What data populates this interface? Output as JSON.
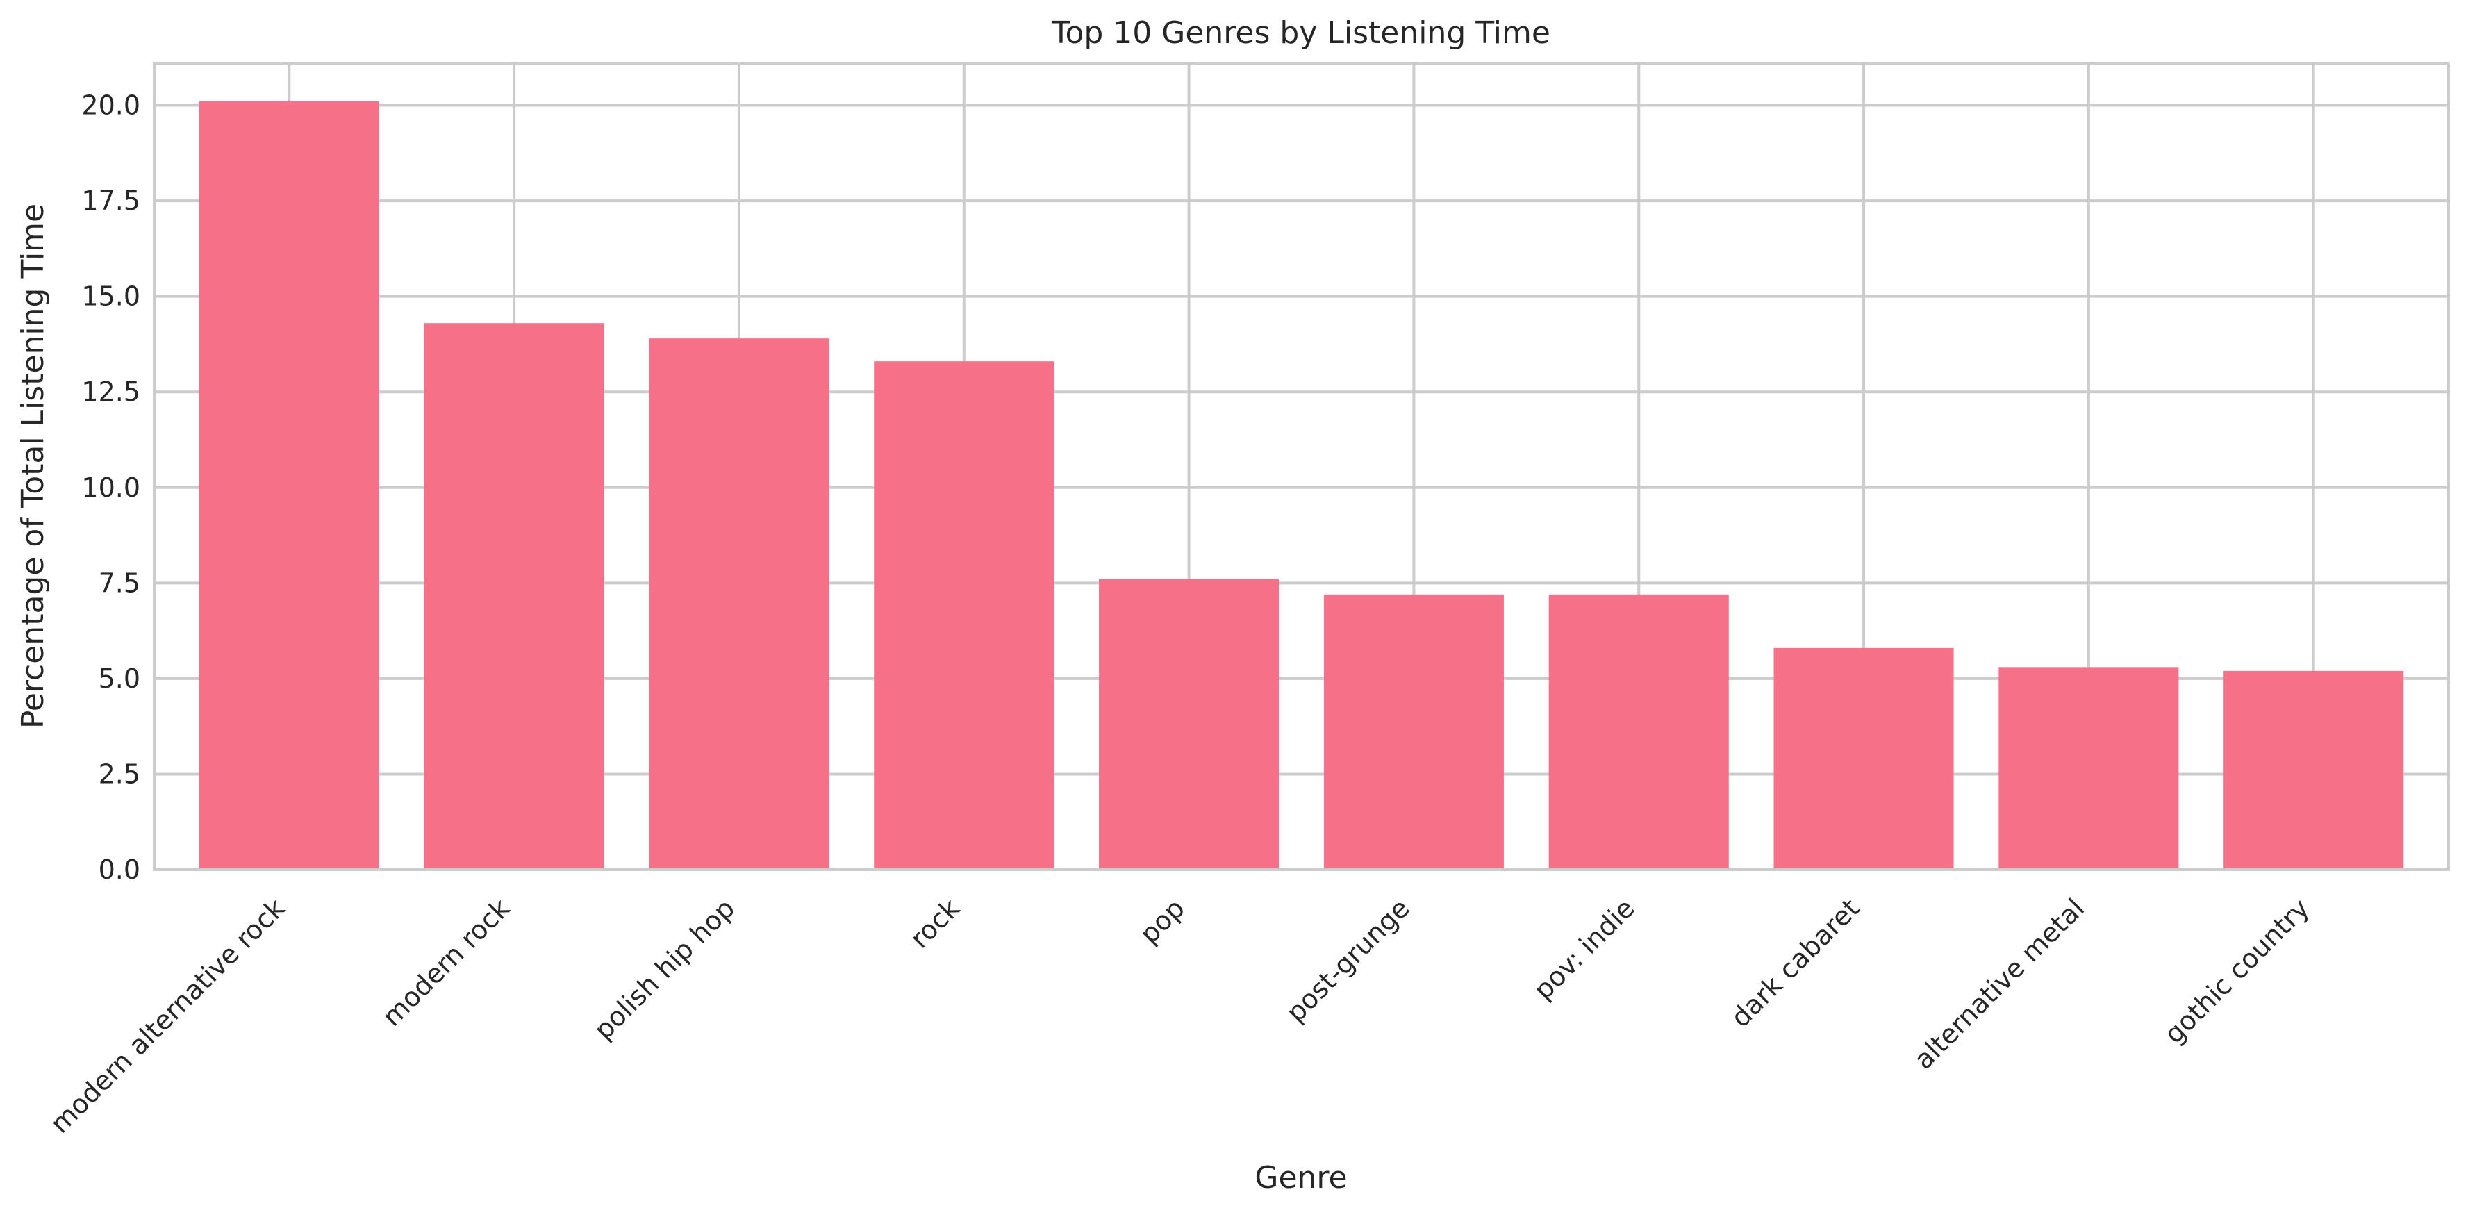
{
  "chart_data": {
    "type": "bar",
    "title": "Top 10 Genres by Listening Time",
    "xlabel": "Genre",
    "ylabel": "Percentage of Total Listening Time",
    "categories": [
      "modern alternative rock",
      "modern rock",
      "polish hip hop",
      "rock",
      "pop",
      "post-grunge",
      "pov: indie",
      "dark cabaret",
      "alternative metal",
      "gothic country"
    ],
    "values": [
      20.1,
      14.3,
      13.9,
      13.3,
      7.6,
      7.2,
      7.2,
      5.8,
      5.3,
      5.2
    ],
    "ylim": [
      0,
      21.1
    ],
    "yticks": [
      0.0,
      2.5,
      5.0,
      7.5,
      10.0,
      12.5,
      15.0,
      17.5,
      20.0
    ],
    "ytick_labels": [
      "0.0",
      "2.5",
      "5.0",
      "7.5",
      "10.0",
      "12.5",
      "15.0",
      "17.5",
      "20.0"
    ],
    "bar_color": "#f67088",
    "grid": true,
    "legend": "none"
  }
}
